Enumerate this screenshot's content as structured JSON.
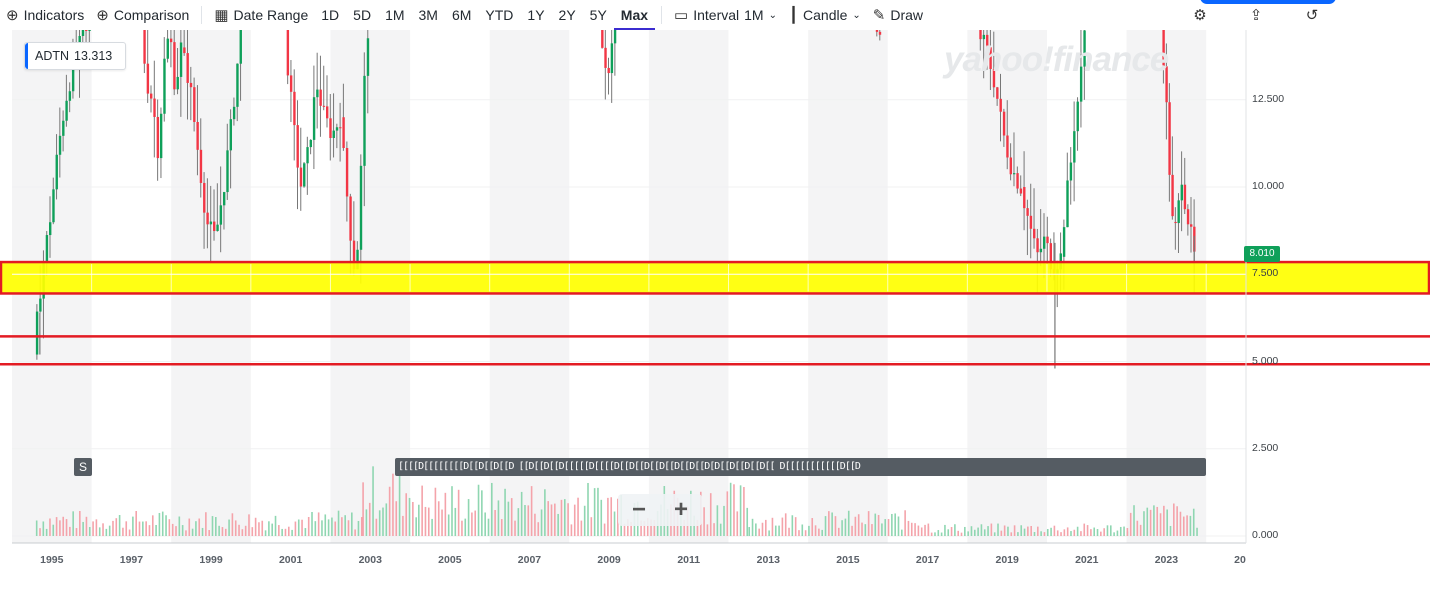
{
  "toolbar": {
    "indicators": "Indicators",
    "comparison": "Comparison",
    "date_range": "Date Range",
    "ranges": [
      "1D",
      "5D",
      "1M",
      "3M",
      "6M",
      "YTD",
      "1Y",
      "2Y",
      "5Y",
      "Max"
    ],
    "active_range": "Max",
    "interval_label": "Interval",
    "interval_value": "1M",
    "chart_type": "Candle",
    "draw": "Draw"
  },
  "ticker": {
    "symbol": "ADTN",
    "value": "13.313"
  },
  "watermark": "yahoo!finance",
  "current_price": "8.010",
  "events_badge": "S",
  "events_strip": "[[[[D[[[[[[[[D[[D[[D[[D [[D[[D[[D[[[[[D[[[[D[[D[[D[[D[[D[[D[[D[D[[D[[D[[D[[ D[[[[[[[[[[[D[[D",
  "zoom": {
    "minus": "−",
    "plus": "+"
  },
  "colors": {
    "up": "#0fa05a",
    "down": "#f23645",
    "wick": "#777777",
    "highlight": "#ffff00",
    "box": "#e31b23"
  },
  "chart_data": {
    "type": "candlestick",
    "x_ticks": [
      "1995",
      "1997",
      "1999",
      "2001",
      "2003",
      "2005",
      "2007",
      "2009",
      "2011",
      "2013",
      "2015",
      "2017",
      "2019",
      "2021",
      "2023",
      "20"
    ],
    "y_ticks": [
      "12.500",
      "10.000",
      "7.500",
      "5.000",
      "2.500",
      "0.000"
    ],
    "y_range": [
      0,
      14.5
    ],
    "x_range": [
      1994.0,
      2025.0
    ],
    "support_zone": [
      6.95,
      7.85
    ],
    "support_lines": [
      5.72,
      4.92
    ],
    "segments": [
      {
        "from": 1994.6,
        "to": 1996.0,
        "levels": [
          5.2,
          7.5,
          9,
          11,
          12.5,
          13.5,
          14.2,
          14.5
        ]
      },
      {
        "from": 1997.3,
        "to": 1998.3,
        "levels": [
          14.5,
          13,
          12.5,
          11,
          13.5,
          14.5,
          12.8,
          14
        ]
      },
      {
        "from": 1998.3,
        "to": 1999.8,
        "levels": [
          14,
          13,
          11,
          9,
          8.5,
          10,
          12,
          14.5
        ]
      },
      {
        "from": 2000.9,
        "to": 2002.3,
        "levels": [
          14.5,
          12,
          10,
          11,
          13,
          12,
          11.5,
          12
        ]
      },
      {
        "from": 2002.3,
        "to": 2003.0,
        "levels": [
          12,
          10.5,
          9,
          7.8,
          8.5,
          12.5,
          14.5
        ]
      },
      {
        "from": 2008.8,
        "to": 2009.2,
        "levels": [
          14.5,
          13.5,
          13,
          14.2,
          14.5
        ]
      },
      {
        "from": 2015.7,
        "to": 2015.85,
        "levels": [
          14.5,
          14.2
        ]
      },
      {
        "from": 2018.3,
        "to": 2019.4,
        "levels": [
          14.5,
          14,
          13,
          11.5,
          10.5,
          10
        ]
      },
      {
        "from": 2019.4,
        "to": 2020.4,
        "levels": [
          10,
          9,
          8,
          8.5,
          7.7,
          8
        ]
      },
      {
        "from": 2020.4,
        "to": 2021.0,
        "levels": [
          8,
          9.5,
          10.5,
          12,
          12.8,
          14.5
        ]
      },
      {
        "from": 2022.9,
        "to": 2023.2,
        "levels": [
          14.5,
          13.5,
          11,
          9
        ]
      },
      {
        "from": 2023.2,
        "to": 2023.75,
        "levels": [
          9,
          8.7,
          10.5,
          9.5,
          8.8,
          8.0
        ]
      }
    ],
    "volume_profile": [
      {
        "from": 1994.6,
        "to": 2002.8,
        "avg": 0.45
      },
      {
        "from": 2002.8,
        "to": 2004.2,
        "avg": 1.25
      },
      {
        "from": 2004.2,
        "to": 2012.5,
        "avg": 0.95
      },
      {
        "from": 2012.5,
        "to": 2017.0,
        "avg": 0.45
      },
      {
        "from": 2017.0,
        "to": 2022.0,
        "avg": 0.22
      },
      {
        "from": 2022.0,
        "to": 2023.75,
        "avg": 0.6
      }
    ]
  }
}
